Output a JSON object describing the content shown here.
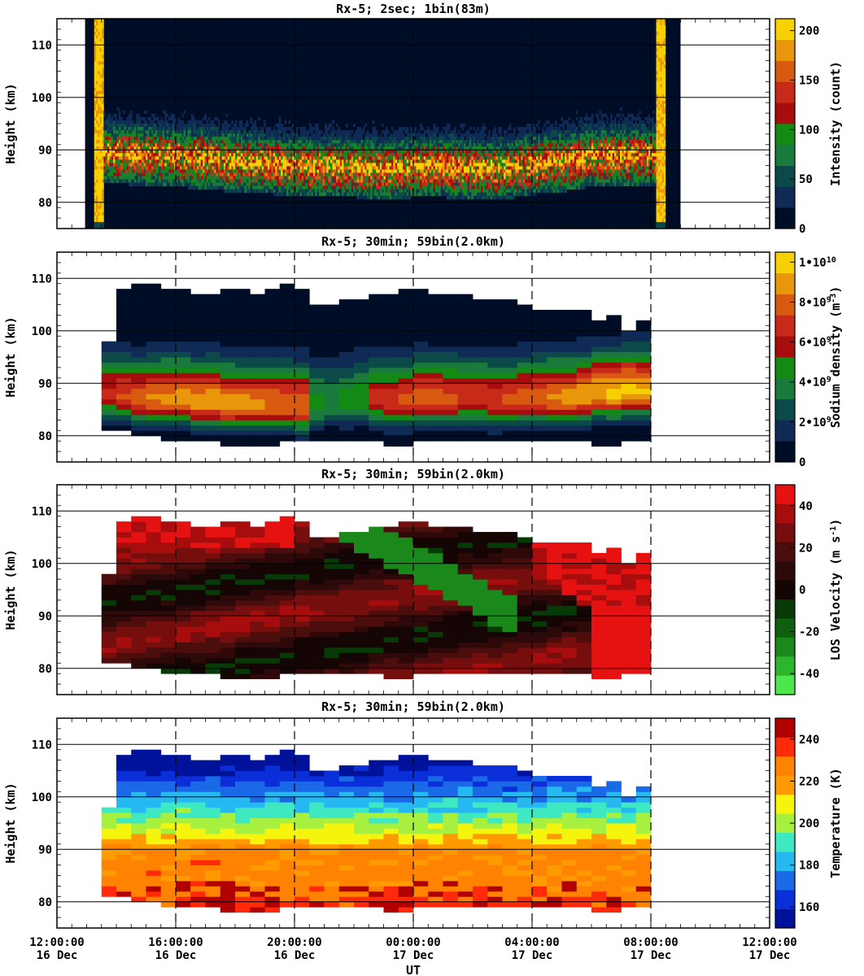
{
  "figure": {
    "x_axis_label": "UT",
    "x_ticks": [
      {
        "time": "12:00:00",
        "date": "16 Dec",
        "hours": 0
      },
      {
        "time": "16:00:00",
        "date": "16 Dec",
        "hours": 4
      },
      {
        "time": "20:00:00",
        "date": "16 Dec",
        "hours": 8
      },
      {
        "time": "00:00:00",
        "date": "17 Dec",
        "hours": 12
      },
      {
        "time": "04:00:00",
        "date": "17 Dec",
        "hours": 16
      },
      {
        "time": "08:00:00",
        "date": "17 Dec",
        "hours": 20
      },
      {
        "time": "12:00:00",
        "date": "17 Dec",
        "hours": 24
      }
    ],
    "y_axis_label": "Height (km)",
    "y_ticks": [
      80,
      90,
      100,
      110
    ],
    "y_range_km": [
      75,
      115
    ],
    "x_range_hours": [
      0,
      24
    ]
  },
  "chart_data": [
    {
      "type": "heatmap",
      "title": "Rx-5;  2sec; 1bin(83m)",
      "xlabel": "",
      "ylabel": "Height (km)",
      "colorbar_label": "Intensity (count)",
      "colorbar_ticks": [
        "0",
        "50",
        "100",
        "150",
        "200"
      ],
      "colorbar_range": [
        0,
        212
      ],
      "colors": [
        "#000d26",
        "#0e2a55",
        "#0c4a4a",
        "#1a7a3c",
        "#138a13",
        "#a80d0d",
        "#c82a1a",
        "#d85a10",
        "#e8960a",
        "#f6d000"
      ],
      "observation_start_h": 1.25,
      "observation_end_h": 20.5,
      "layer_center_km": [
        [
          2.2,
          88.5
        ],
        [
          4,
          88
        ],
        [
          6,
          87
        ],
        [
          7.5,
          86.5
        ],
        [
          8.5,
          86
        ],
        [
          10,
          86
        ],
        [
          11,
          85.5
        ],
        [
          12,
          86
        ],
        [
          13,
          86
        ],
        [
          14,
          85.5
        ],
        [
          15,
          85.5
        ],
        [
          16,
          86.5
        ],
        [
          17,
          87
        ],
        [
          18,
          88
        ],
        [
          19.5,
          88
        ]
      ]
    },
    {
      "type": "heatmap",
      "title": "Rx-5; 30min; 59bin(2.0km)",
      "xlabel": "",
      "ylabel": "Height (km)",
      "colorbar_label": "Sodium density (m^-3)",
      "colorbar_ticks": [
        "0",
        "2•10^9",
        "4•10^9",
        "6•10^9",
        "8•10^9",
        "1•10^10"
      ],
      "colorbar_range": [
        0,
        10500000000.0
      ],
      "colors": [
        "#000d26",
        "#0e2a55",
        "#0c4a4a",
        "#1a7a3c",
        "#138a13",
        "#a80d0d",
        "#c82a1a",
        "#d85a10",
        "#e8960a",
        "#f6d000"
      ],
      "time_start_h": 1.5,
      "time_end_h": 20,
      "top_km": [
        98,
        108,
        109,
        109,
        108,
        108,
        107,
        107,
        108,
        108,
        107,
        108,
        109,
        108,
        105,
        105,
        106,
        106,
        107,
        107,
        108,
        108,
        107,
        107,
        107,
        106,
        106,
        106,
        105,
        104,
        104,
        104,
        104,
        102,
        103,
        100,
        102
      ],
      "bottom_km": [
        81,
        81,
        80,
        80,
        79,
        79,
        79,
        79,
        78,
        78,
        78,
        78,
        79,
        79,
        79,
        79,
        79,
        79,
        79,
        78,
        78,
        79,
        79,
        79,
        79,
        79,
        79,
        79,
        79,
        79,
        79,
        79,
        79,
        78,
        78,
        79,
        79
      ],
      "peak_km": [
        88,
        87.5,
        87,
        87,
        87,
        87,
        86.5,
        86.5,
        86,
        86,
        86,
        86,
        86,
        85.5,
        86,
        86.5,
        86.5,
        87,
        87,
        86.5,
        86.5,
        87,
        87,
        87,
        87,
        87,
        86.5,
        86.5,
        87,
        87,
        87,
        87,
        87.5,
        88,
        88,
        88.5,
        88.5
      ],
      "peak_value": [
        6500000000.0,
        7300000000.0,
        7800000000.0,
        8300000000.0,
        8600000000.0,
        8800000000.0,
        8900000000.0,
        9000000000.0,
        8800000000.0,
        8700000000.0,
        8500000000.0,
        8300000000.0,
        8200000000.0,
        8300000000.0,
        4500000000.0,
        4000000000.0,
        4500000000.0,
        5000000000.0,
        6500000000.0,
        7000000000.0,
        7500000000.0,
        7800000000.0,
        8000000000.0,
        7500000000.0,
        7000000000.0,
        7000000000.0,
        7200000000.0,
        7500000000.0,
        7800000000.0,
        8000000000.0,
        8500000000.0,
        8800000000.0,
        9000000000.0,
        9300000000.0,
        9600000000.0,
        9800000000.0,
        9600000000.0
      ]
    },
    {
      "type": "heatmap",
      "title": "Rx-5; 30min; 59bin(2.0km)",
      "xlabel": "",
      "ylabel": "Height (km)",
      "colorbar_label": "LOS Velocity (m s^-1)",
      "colorbar_ticks": [
        "-40",
        "-20",
        "0",
        "20",
        "40"
      ],
      "colorbar_range": [
        -50,
        50
      ],
      "colors": [
        "#4de64d",
        "#2db52d",
        "#1b881b",
        "#0f5f0f",
        "#073a07",
        "#150505",
        "#2e0909",
        "#4c0d0d",
        "#760e0e",
        "#a80d0d",
        "#e61111"
      ],
      "time_start_h": 1.5,
      "time_end_h": 20,
      "top_km": [
        98,
        108,
        109,
        109,
        108,
        108,
        107,
        107,
        108,
        108,
        107,
        108,
        109,
        108,
        105,
        105,
        106,
        106,
        107,
        107,
        108,
        108,
        107,
        107,
        107,
        106,
        106,
        106,
        105,
        104,
        104,
        104,
        104,
        102,
        103,
        100,
        102
      ],
      "bottom_km": [
        81,
        81,
        80,
        80,
        79,
        79,
        79,
        79,
        78,
        78,
        78,
        78,
        79,
        79,
        79,
        79,
        79,
        79,
        79,
        78,
        78,
        79,
        79,
        79,
        79,
        79,
        79,
        79,
        79,
        79,
        79,
        79,
        79,
        78,
        78,
        79,
        79
      ],
      "phase_line_km_per_h": -3.0
    },
    {
      "type": "heatmap",
      "title": "Rx-5; 30min; 59bin(2.0km)",
      "xlabel": "UT",
      "ylabel": "Height (km)",
      "colorbar_label": "Temperature (K)",
      "colorbar_ticks": [
        "160",
        "180",
        "200",
        "220",
        "240"
      ],
      "colorbar_range": [
        150,
        250
      ],
      "colors": [
        "#00129a",
        "#0a2ed8",
        "#1a6ae8",
        "#26b8f0",
        "#3ee8c0",
        "#a8f040",
        "#f4f40c",
        "#ff9a00",
        "#ff8200",
        "#ff2a0a",
        "#b00000"
      ],
      "time_start_h": 1.5,
      "time_end_h": 20,
      "top_km": [
        98,
        108,
        109,
        109,
        108,
        108,
        107,
        107,
        108,
        108,
        107,
        108,
        109,
        108,
        105,
        105,
        106,
        106,
        107,
        107,
        108,
        108,
        107,
        107,
        107,
        106,
        106,
        106,
        105,
        104,
        104,
        104,
        104,
        102,
        103,
        100,
        102
      ],
      "bottom_km": [
        81,
        81,
        80,
        80,
        79,
        79,
        79,
        79,
        78,
        78,
        78,
        78,
        79,
        79,
        79,
        79,
        79,
        79,
        79,
        78,
        78,
        79,
        79,
        79,
        79,
        79,
        79,
        79,
        79,
        79,
        79,
        79,
        79,
        78,
        78,
        79,
        79
      ]
    }
  ]
}
